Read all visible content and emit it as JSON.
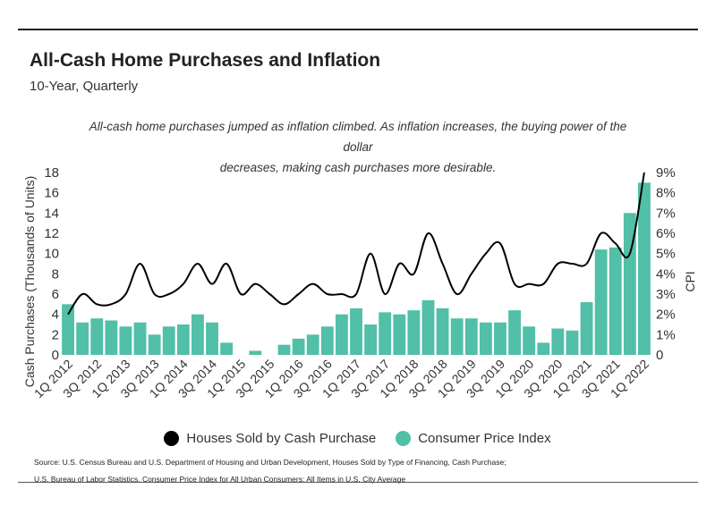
{
  "title": "All-Cash Home Purchases and Inflation",
  "subtitle": "10-Year, Quarterly",
  "note_line1": "All-cash home purchases jumped as inflation climbed. As inflation increases, the buying power of the dollar",
  "note_line2": "decreases, making cash purchases more desirable.",
  "source_line1": "Source:  U.S. Census Bureau and U.S. Department of Housing and Urban Development, Houses Sold by Type of Financing, Cash Purchase;",
  "source_line2": "U.S. Bureau of Labor Statistics, Consumer Price Index for All Urban Consumers: All Items in U.S. City Average",
  "colors": {
    "bar": "#52bfa8",
    "line": "#000000",
    "text": "#333333"
  },
  "chart_data": {
    "type": "bar+line",
    "xlabel": "",
    "ylabel_left": "Cash Purchases (Thousands of Units)",
    "ylabel_right": "CPI",
    "ylim_left": [
      0,
      18
    ],
    "ylim_right": [
      0,
      9
    ],
    "left_ticks": [
      "0",
      "2",
      "4",
      "6",
      "8",
      "10",
      "12",
      "14",
      "16",
      "18"
    ],
    "right_ticks": [
      "0",
      "1%",
      "2%",
      "3%",
      "4%",
      "5%",
      "6%",
      "7%",
      "8%",
      "9%"
    ],
    "categories": [
      "1Q 2012",
      "2Q 2012",
      "3Q 2012",
      "4Q 2012",
      "1Q 2013",
      "2Q 2013",
      "3Q 2013",
      "4Q 2013",
      "1Q 2014",
      "2Q 2014",
      "3Q 2014",
      "4Q 2014",
      "1Q 2015",
      "2Q 2015",
      "3Q 2015",
      "4Q 2015",
      "1Q 2016",
      "2Q 2016",
      "3Q 2016",
      "4Q 2016",
      "1Q 2017",
      "2Q 2017",
      "3Q 2017",
      "4Q 2017",
      "1Q 2018",
      "2Q 2018",
      "3Q 2018",
      "4Q 2018",
      "1Q 2019",
      "2Q 2019",
      "3Q 2019",
      "4Q 2019",
      "1Q 2020",
      "2Q 2020",
      "3Q 2020",
      "4Q 2020",
      "1Q 2021",
      "2Q 2021",
      "3Q 2021",
      "4Q 2021",
      "1Q 2022"
    ],
    "tick_labels": [
      "1Q 2012",
      "3Q 2012",
      "1Q 2013",
      "3Q 2013",
      "1Q 2014",
      "3Q 2014",
      "1Q 2015",
      "3Q 2015",
      "1Q 2016",
      "3Q 2016",
      "1Q 2017",
      "3Q 2017",
      "1Q 2018",
      "3Q 2018",
      "1Q 2019",
      "3Q 2019",
      "1Q 2020",
      "3Q 2020",
      "1Q 2021",
      "3Q 2021",
      "1Q 2022"
    ],
    "series": [
      {
        "name": "Houses Sold by Cash Purchase",
        "type": "line",
        "axis": "left",
        "values": [
          4,
          6,
          5,
          5,
          6,
          9,
          6,
          6,
          7,
          9,
          7,
          9,
          6,
          7,
          6,
          5,
          6,
          7,
          6,
          6,
          6,
          10,
          6,
          9,
          8,
          12,
          9,
          6,
          8,
          10,
          11,
          7,
          7,
          7,
          9,
          9,
          9,
          12,
          11,
          10,
          18
        ]
      },
      {
        "name": "Consumer Price Index",
        "type": "bar",
        "axis": "right",
        "unit": "%",
        "values": [
          2.5,
          1.6,
          1.8,
          1.7,
          1.4,
          1.6,
          1.0,
          1.4,
          1.5,
          2.0,
          1.6,
          0.6,
          0,
          0.2,
          0,
          0.5,
          0.8,
          1.0,
          1.4,
          2.0,
          2.3,
          1.5,
          2.1,
          2.0,
          2.2,
          2.7,
          2.3,
          1.8,
          1.8,
          1.6,
          1.6,
          2.2,
          1.4,
          0.6,
          1.3,
          1.2,
          2.6,
          5.2,
          5.3,
          7.0,
          8.5
        ]
      }
    ],
    "legend": [
      "Houses Sold by Cash Purchase",
      "Consumer Price Index"
    ],
    "legend_position": "bottom"
  }
}
